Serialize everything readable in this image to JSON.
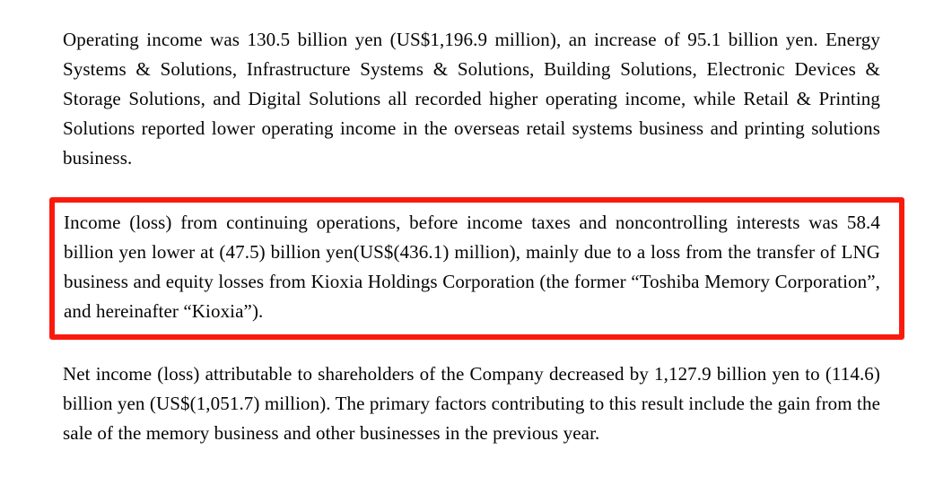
{
  "page": {
    "background_color": "#ffffff",
    "text_color": "#050505"
  },
  "document": {
    "highlight_color": "#fa1a0d",
    "paragraphs": [
      {
        "id": "operating-income",
        "highlighted": false,
        "text": "Operating income was 130.5 billion yen (US$1,196.9 million), an increase of 95.1 billion yen. Energy Systems & Solutions, Infrastructure Systems & Solutions, Building Solutions, Electronic Devices & Storage Solutions, and Digital Solutions all recorded higher operating income, while Retail & Printing Solutions reported lower operating income in the overseas retail systems business and printing solutions business."
      },
      {
        "id": "income-loss-from-continuing-operations",
        "highlighted": true,
        "text": "Income (loss) from continuing operations, before income taxes and noncontrolling interests was 58.4 billion yen lower at (47.5) billion yen(US$(436.1) million), mainly due to a loss from the transfer of LNG business and equity losses from Kioxia Holdings Corporation (the former “Toshiba Memory Corporation”, and hereinafter “Kioxia”)."
      },
      {
        "id": "net-income-loss",
        "highlighted": false,
        "text": "Net income (loss) attributable to shareholders of the Company decreased by 1,127.9 billion yen to (114.6) billion yen (US$(1,051.7) million). The primary factors contributing to this result include the gain from the sale of the memory business and other businesses in the previous year."
      }
    ]
  }
}
